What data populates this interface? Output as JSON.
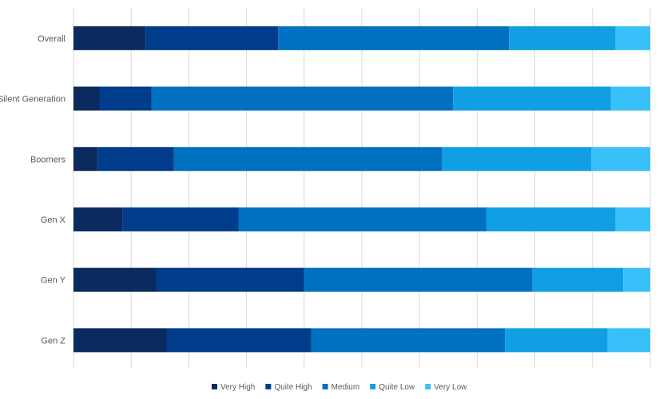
{
  "chart_data": {
    "type": "bar",
    "orientation": "horizontal",
    "stacked": true,
    "percent_stacked": true,
    "categories": [
      "Overall",
      "Silent Generation",
      "Boomers",
      "Gen X",
      "Gen Y",
      "Gen Z"
    ],
    "series": [
      {
        "name": "Very High",
        "color": "#0b2a5e",
        "values": [
          12.5,
          4.5,
          4.2,
          8.5,
          14.4,
          16.2
        ]
      },
      {
        "name": "Quite High",
        "color": "#003c8c",
        "values": [
          23.0,
          9.0,
          13.2,
          20.1,
          25.6,
          25.0
        ]
      },
      {
        "name": "Medium",
        "color": "#0070c0",
        "values": [
          40.0,
          52.3,
          46.5,
          43.0,
          39.6,
          33.6
        ]
      },
      {
        "name": "Quite Low",
        "color": "#109fe2",
        "values": [
          18.5,
          27.4,
          25.9,
          22.4,
          15.7,
          17.8
        ]
      },
      {
        "name": "Very Low",
        "color": "#39c0f9",
        "values": [
          6.0,
          6.8,
          10.2,
          6.0,
          4.7,
          7.4
        ]
      }
    ],
    "xlim": [
      0,
      100
    ],
    "gridlines": true,
    "legend_position": "bottom",
    "title": "",
    "xlabel": "",
    "ylabel": ""
  },
  "colors": {
    "gridline": "#d9d9d9",
    "label": "#595959"
  }
}
